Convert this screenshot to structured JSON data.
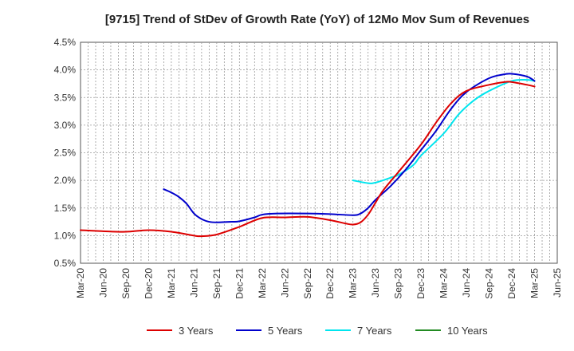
{
  "chart_data": {
    "type": "line",
    "title": "[9715]  Trend of StDev of Growth Rate (YoY) of 12Mo Mov Sum of Revenues",
    "xlabel": "",
    "ylabel": "",
    "ylim": [
      0.005,
      0.045
    ],
    "yticks": [
      0.005,
      0.01,
      0.015,
      0.02,
      0.025,
      0.03,
      0.035,
      0.04,
      0.045
    ],
    "ytick_labels": [
      "0.5%",
      "1.0%",
      "1.5%",
      "2.0%",
      "2.5%",
      "3.0%",
      "3.5%",
      "4.0%",
      "4.5%"
    ],
    "x_start": "Mar-20",
    "x_end": "Jun-25",
    "x_tick_labels": [
      "Mar-20",
      "Jun-20",
      "Sep-20",
      "Dec-20",
      "Mar-21",
      "Jun-21",
      "Sep-21",
      "Dec-21",
      "Mar-22",
      "Jun-22",
      "Sep-22",
      "Dec-22",
      "Mar-23",
      "Jun-23",
      "Sep-23",
      "Dec-23",
      "Mar-24",
      "Jun-24",
      "Sep-24",
      "Dec-24",
      "Mar-25",
      "Jun-25"
    ],
    "grid": true,
    "legend_position": "bottom",
    "series": [
      {
        "name": "3 Years",
        "color": "#dd0000",
        "values": [
          [
            "Mar-20",
            0.011
          ],
          [
            "Jun-20",
            0.0108
          ],
          [
            "Sep-20",
            0.0107
          ],
          [
            "Dec-20",
            0.011
          ],
          [
            "Mar-21",
            0.0107
          ],
          [
            "Jun-21",
            0.01
          ],
          [
            "Jul-21",
            0.0099
          ],
          [
            "Sep-21",
            0.0102
          ],
          [
            "Dec-21",
            0.0116
          ],
          [
            "Mar-22",
            0.0132
          ],
          [
            "Jun-22",
            0.0133
          ],
          [
            "Sep-22",
            0.0134
          ],
          [
            "Dec-22",
            0.0128
          ],
          [
            "Feb-23",
            0.0122
          ],
          [
            "Mar-23",
            0.012
          ],
          [
            "Apr-23",
            0.0124
          ],
          [
            "May-23",
            0.0138
          ],
          [
            "Jun-23",
            0.016
          ],
          [
            "Jul-23",
            0.0182
          ],
          [
            "Sep-23",
            0.0215
          ],
          [
            "Dec-23",
            0.0265
          ],
          [
            "Feb-24",
            0.0305
          ],
          [
            "Apr-24",
            0.034
          ],
          [
            "Jun-24",
            0.0362
          ],
          [
            "Sep-24",
            0.0373
          ],
          [
            "Nov-24",
            0.0378
          ],
          [
            "Dec-24",
            0.0378
          ],
          [
            "Feb-25",
            0.0373
          ],
          [
            "Mar-25",
            0.037
          ]
        ]
      },
      {
        "name": "5 Years",
        "color": "#0000cc",
        "values": [
          [
            "Feb-21",
            0.0184
          ],
          [
            "Mar-21",
            0.0178
          ],
          [
            "Apr-21",
            0.017
          ],
          [
            "May-21",
            0.0158
          ],
          [
            "Jun-21",
            0.014
          ],
          [
            "Jul-21",
            0.013
          ],
          [
            "Aug-21",
            0.0125
          ],
          [
            "Sep-21",
            0.0124
          ],
          [
            "Nov-21",
            0.0125
          ],
          [
            "Dec-21",
            0.0126
          ],
          [
            "Feb-22",
            0.0133
          ],
          [
            "Mar-22",
            0.0138
          ],
          [
            "May-22",
            0.014
          ],
          [
            "Sep-22",
            0.014
          ],
          [
            "Dec-22",
            0.0139
          ],
          [
            "Mar-23",
            0.0137
          ],
          [
            "Apr-23",
            0.014
          ],
          [
            "May-23",
            0.015
          ],
          [
            "Jun-23",
            0.0165
          ],
          [
            "Aug-23",
            0.019
          ],
          [
            "Oct-23",
            0.022
          ],
          [
            "Dec-23",
            0.0255
          ],
          [
            "Feb-24",
            0.029
          ],
          [
            "Apr-24",
            0.033
          ],
          [
            "Jun-24",
            0.036
          ],
          [
            "Sep-24",
            0.0385
          ],
          [
            "Nov-24",
            0.0392
          ],
          [
            "Dec-24",
            0.0393
          ],
          [
            "Feb-25",
            0.0388
          ],
          [
            "Mar-25",
            0.038
          ]
        ]
      },
      {
        "name": "7 Years",
        "color": "#00e5ee",
        "values": [
          [
            "Mar-23",
            0.02
          ],
          [
            "May-23",
            0.0195
          ],
          [
            "Jun-23",
            0.0196
          ],
          [
            "Aug-23",
            0.0205
          ],
          [
            "Sep-23",
            0.021
          ],
          [
            "Nov-23",
            0.0228
          ],
          [
            "Dec-23",
            0.0245
          ],
          [
            "Mar-24",
            0.0285
          ],
          [
            "May-24",
            0.032
          ],
          [
            "Jul-24",
            0.0345
          ],
          [
            "Sep-24",
            0.0362
          ],
          [
            "Dec-24",
            0.038
          ],
          [
            "Feb-25",
            0.0382
          ],
          [
            "Mar-25",
            0.038
          ]
        ]
      },
      {
        "name": "10 Years",
        "color": "#228b22",
        "values": []
      }
    ]
  }
}
